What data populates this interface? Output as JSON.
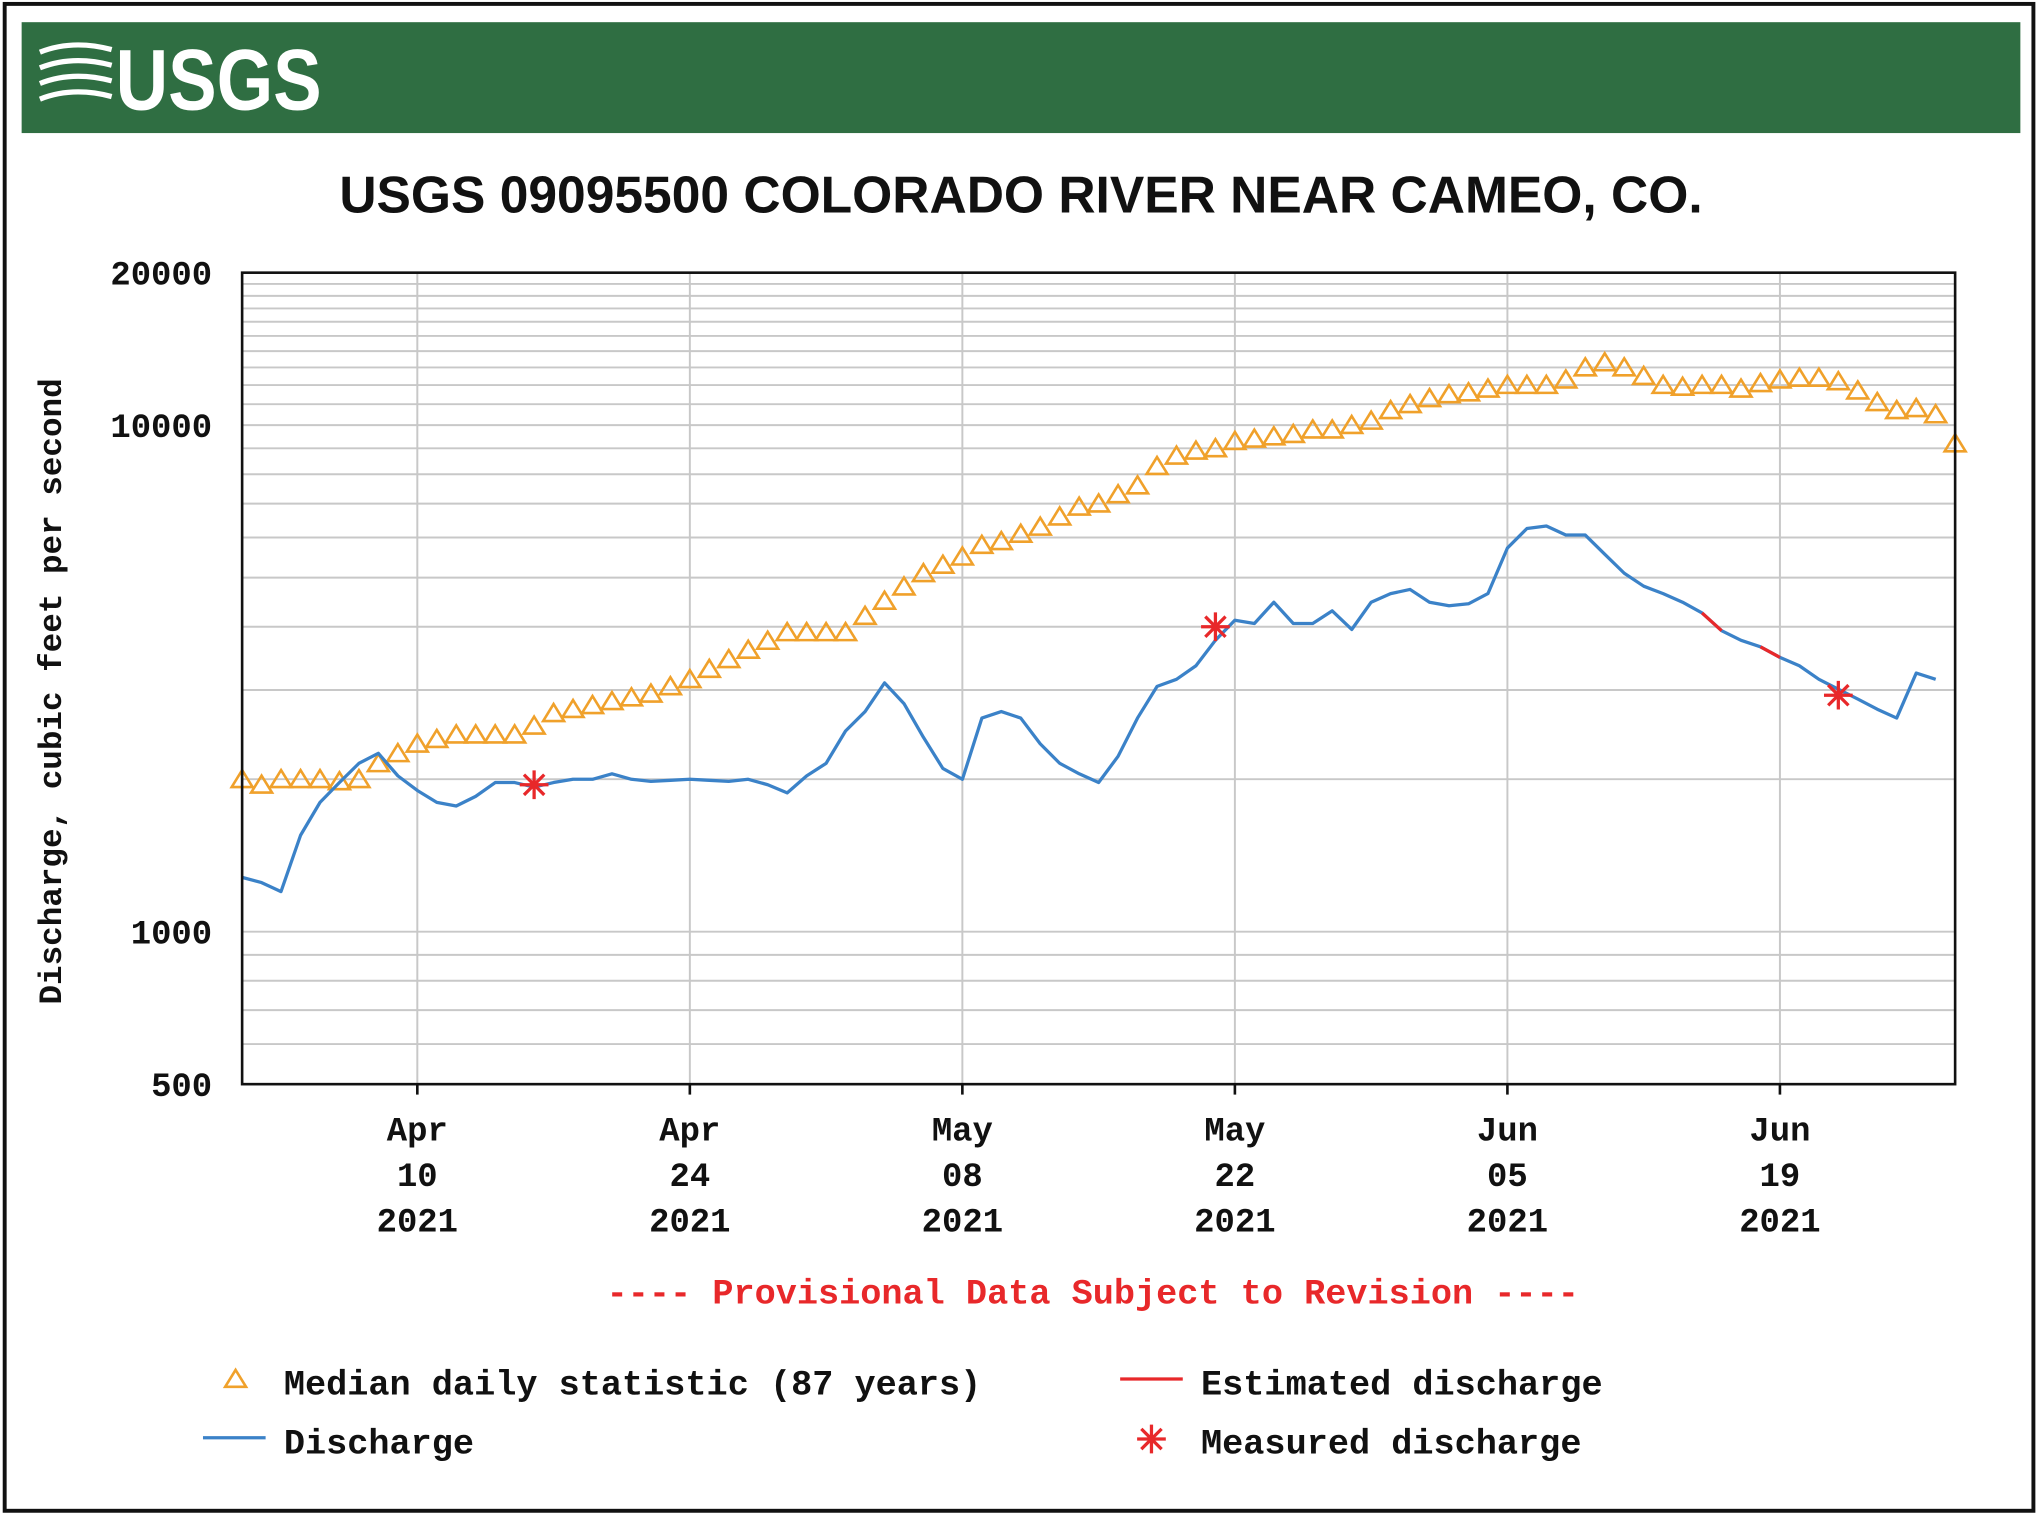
{
  "logo_text": "USGS",
  "chart_data": {
    "type": "line",
    "title": "USGS 09095500 COLORADO RIVER NEAR CAMEO, CO.",
    "y_label": "Discharge, cubic feet per second",
    "note": "---- Provisional Data Subject to Revision ----",
    "log_y": true,
    "grid": true,
    "ylim": [
      500,
      20000
    ],
    "yticks": [
      500,
      1000,
      10000,
      20000
    ],
    "y_minor_gridlines": [
      600,
      700,
      800,
      900,
      2000,
      3000,
      4000,
      5000,
      6000,
      7000,
      8000,
      9000,
      11000,
      12000,
      13000,
      14000,
      15000,
      16000,
      17000,
      18000,
      19000
    ],
    "xlim": [
      "2021-04-01",
      "2021-06-28"
    ],
    "xticks": [
      {
        "value": "2021-04-10",
        "label": "Apr\n10\n2021"
      },
      {
        "value": "2021-04-24",
        "label": "Apr\n24\n2021"
      },
      {
        "value": "2021-05-08",
        "label": "May\n08\n2021"
      },
      {
        "value": "2021-05-22",
        "label": "May\n22\n2021"
      },
      {
        "value": "2021-06-05",
        "label": "Jun\n05\n2021"
      },
      {
        "value": "2021-06-19",
        "label": "Jun\n19\n2021"
      }
    ],
    "x": [
      "2021-04-01",
      "2021-04-02",
      "2021-04-03",
      "2021-04-04",
      "2021-04-05",
      "2021-04-06",
      "2021-04-07",
      "2021-04-08",
      "2021-04-09",
      "2021-04-10",
      "2021-04-11",
      "2021-04-12",
      "2021-04-13",
      "2021-04-14",
      "2021-04-15",
      "2021-04-16",
      "2021-04-17",
      "2021-04-18",
      "2021-04-19",
      "2021-04-20",
      "2021-04-21",
      "2021-04-22",
      "2021-04-23",
      "2021-04-24",
      "2021-04-25",
      "2021-04-26",
      "2021-04-27",
      "2021-04-28",
      "2021-04-29",
      "2021-04-30",
      "2021-05-01",
      "2021-05-02",
      "2021-05-03",
      "2021-05-04",
      "2021-05-05",
      "2021-05-06",
      "2021-05-07",
      "2021-05-08",
      "2021-05-09",
      "2021-05-10",
      "2021-05-11",
      "2021-05-12",
      "2021-05-13",
      "2021-05-14",
      "2021-05-15",
      "2021-05-16",
      "2021-05-17",
      "2021-05-18",
      "2021-05-19",
      "2021-05-20",
      "2021-05-21",
      "2021-05-22",
      "2021-05-23",
      "2021-05-24",
      "2021-05-25",
      "2021-05-26",
      "2021-05-27",
      "2021-05-28",
      "2021-05-29",
      "2021-05-30",
      "2021-05-31",
      "2021-06-01",
      "2021-06-02",
      "2021-06-03",
      "2021-06-04",
      "2021-06-05",
      "2021-06-06",
      "2021-06-07",
      "2021-06-08",
      "2021-06-09",
      "2021-06-10",
      "2021-06-11",
      "2021-06-12",
      "2021-06-13",
      "2021-06-14",
      "2021-06-15",
      "2021-06-16",
      "2021-06-17",
      "2021-06-18",
      "2021-06-19",
      "2021-06-20",
      "2021-06-21",
      "2021-06-22",
      "2021-06-23",
      "2021-06-24",
      "2021-06-25",
      "2021-06-26",
      "2021-06-27",
      "2021-06-28"
    ],
    "series": [
      {
        "name": "Median daily statistic (87 years)",
        "color": "#f0a12b",
        "style": "triangle",
        "values": [
          2000,
          1950,
          2000,
          2000,
          2000,
          1980,
          2000,
          2150,
          2250,
          2350,
          2400,
          2450,
          2450,
          2450,
          2450,
          2550,
          2700,
          2750,
          2800,
          2850,
          2900,
          2950,
          3050,
          3150,
          3300,
          3450,
          3600,
          3750,
          3900,
          3900,
          3900,
          3900,
          4200,
          4500,
          4800,
          5100,
          5300,
          5500,
          5800,
          5900,
          6100,
          6300,
          6600,
          6900,
          7000,
          7300,
          7600,
          8300,
          8700,
          8900,
          9000,
          9300,
          9400,
          9500,
          9600,
          9800,
          9800,
          10000,
          10200,
          10700,
          11000,
          11300,
          11500,
          11600,
          11800,
          12000,
          12000,
          12000,
          12300,
          13000,
          13300,
          13000,
          12500,
          12000,
          11900,
          12000,
          12000,
          11800,
          12100,
          12300,
          12400,
          12400,
          12200,
          11700,
          11100,
          10700,
          10800,
          10500,
          9200
        ]
      },
      {
        "name": "Discharge",
        "color": "#3b82c8",
        "style": "line",
        "values": [
          1280,
          1250,
          1200,
          1550,
          1800,
          1970,
          2150,
          2250,
          2030,
          1900,
          1800,
          1770,
          1850,
          1970,
          1970,
          1930,
          1970,
          2000,
          2000,
          2050,
          2000,
          1980,
          1990,
          2000,
          1990,
          1980,
          2000,
          1950,
          1880,
          2030,
          2150,
          2490,
          2720,
          3100,
          2820,
          2420,
          2100,
          2000,
          2640,
          2720,
          2640,
          2350,
          2150,
          2050,
          1970,
          2220,
          2640,
          3050,
          3150,
          3350,
          3760,
          4120,
          4060,
          4470,
          4060,
          4060,
          4300,
          3950,
          4470,
          4650,
          4740,
          4470,
          4400,
          4440,
          4650,
          5720,
          6250,
          6320,
          6070,
          6070,
          5560,
          5100,
          4810,
          4650,
          4470,
          4260,
          3930,
          3760,
          3650,
          3480,
          3350,
          3150,
          3010,
          2880,
          2750,
          2640,
          3240,
          3150,
          null
        ]
      },
      {
        "name": "Estimated discharge",
        "color": "#e8282a",
        "style": "line",
        "values": [
          null,
          null,
          null,
          null,
          null,
          null,
          null,
          null,
          null,
          null,
          null,
          null,
          null,
          null,
          null,
          null,
          null,
          null,
          null,
          null,
          null,
          null,
          null,
          null,
          null,
          null,
          null,
          null,
          null,
          null,
          null,
          null,
          null,
          null,
          null,
          null,
          null,
          null,
          null,
          null,
          null,
          null,
          null,
          null,
          null,
          null,
          null,
          null,
          null,
          null,
          null,
          null,
          null,
          null,
          null,
          null,
          null,
          null,
          null,
          null,
          null,
          null,
          null,
          null,
          null,
          null,
          null,
          null,
          null,
          null,
          null,
          null,
          null,
          null,
          null,
          4260,
          3930,
          null,
          3650,
          3480,
          null,
          null,
          null,
          null,
          null,
          null,
          null,
          null,
          null
        ]
      },
      {
        "name": "Measured discharge",
        "color": "#e8282a",
        "style": "asterisk",
        "x": [
          "2021-04-16",
          "2021-05-21",
          "2021-06-22"
        ],
        "values": [
          1950,
          4000,
          2930
        ]
      }
    ]
  }
}
